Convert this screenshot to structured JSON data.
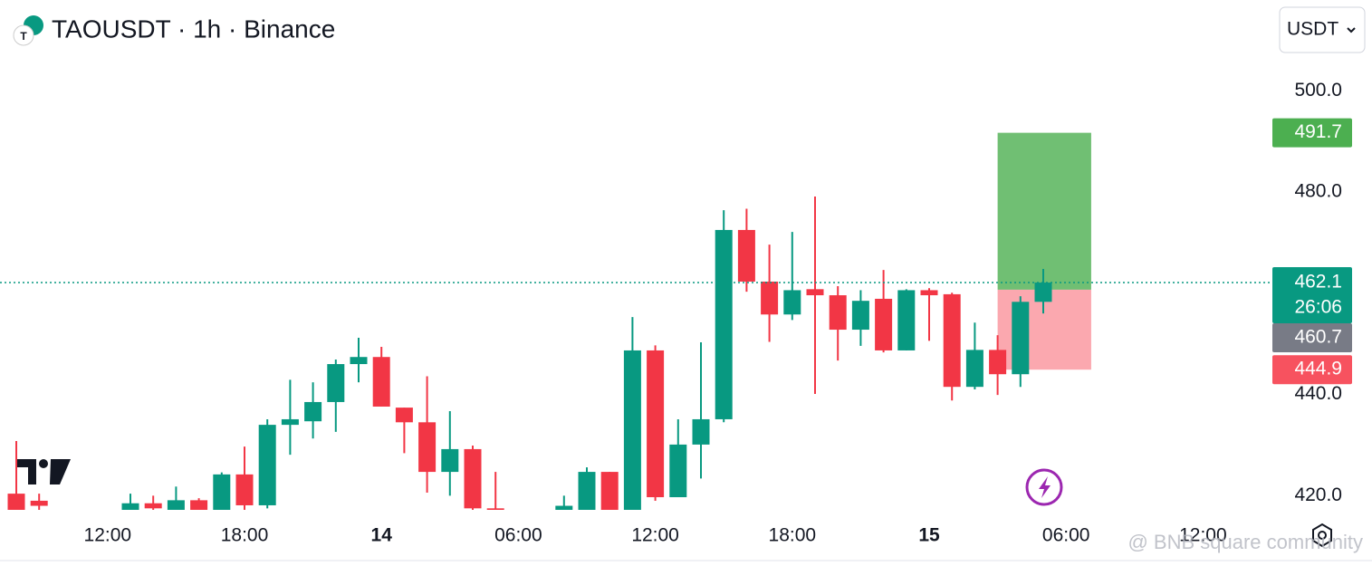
{
  "chart_data": {
    "type": "candlestick",
    "title": "TAOUSDT · 1h · Binance",
    "currency": "USDT",
    "categories": [
      null,
      null,
      null,
      null,
      "12:00",
      null,
      null,
      null,
      null,
      null,
      "18:00",
      null,
      null,
      null,
      null,
      null,
      "14",
      null,
      null,
      null,
      null,
      null,
      "06:00",
      null,
      null,
      null,
      null,
      null,
      "12:00",
      null,
      null,
      null,
      null,
      null,
      "18:00",
      null,
      null,
      null,
      null,
      null,
      "15",
      null,
      null,
      null,
      null,
      null,
      "06:00",
      null,
      null,
      null,
      null,
      null,
      "12:00",
      null,
      null,
      null
    ],
    "open": [
      420.4,
      419,
      null,
      null,
      null,
      417,
      418.5,
      417,
      419.1,
      417,
      424.2,
      418.1,
      434.0,
      434.7,
      438.5,
      446.0,
      447.4,
      437.4,
      434.5,
      424.7,
      429.2,
      417.5,
      null,
      null,
      417,
      417,
      424.7,
      417,
      448.7,
      419.7,
      430.1,
      435.1,
      472.5,
      462.3,
      455.8,
      460.8,
      459.6,
      452.8,
      458.9,
      448.7,
      460.6,
      459.8,
      441.5,
      448.8,
      444.0,
      458.3,
      null,
      null,
      null,
      null,
      null,
      null,
      null,
      null,
      null,
      null
    ],
    "high": [
      430.8,
      420.4,
      null,
      null,
      null,
      420.4,
      420,
      421.8,
      419.5,
      424.6,
      429.7,
      435.1,
      442.9,
      442.4,
      446.9,
      451.2,
      449.4,
      437.4,
      443.6,
      436.7,
      429.9,
      424.7,
      null,
      null,
      420,
      425.6,
      424.7,
      455.3,
      449.7,
      435.1,
      450.3,
      476.4,
      476.7,
      469.6,
      472.1,
      479.1,
      461.4,
      460.6,
      464.6,
      460.8,
      461.0,
      460.1,
      454.2,
      451.7,
      459.4,
      464.8,
      null,
      null,
      null,
      null,
      null,
      null,
      null,
      null,
      null,
      null
    ],
    "low": [
      415,
      416,
      null,
      null,
      null,
      416,
      416,
      416,
      416,
      416,
      417.2,
      417.5,
      428.1,
      431.3,
      432.6,
      442.4,
      437.6,
      428.4,
      420.6,
      420.0,
      417,
      416,
      null,
      null,
      416,
      416,
      416,
      416,
      419.0,
      419.7,
      423.4,
      434.5,
      460.3,
      450.4,
      454.7,
      440.1,
      446.7,
      449.6,
      448.3,
      448.7,
      450.6,
      438.8,
      441.0,
      439.9,
      441.5,
      456.0,
      null,
      null,
      null,
      null,
      null,
      null,
      null,
      null,
      null,
      null
    ],
    "close": [
      417,
      418,
      null,
      null,
      null,
      418.5,
      417.5,
      419.1,
      417,
      424.2,
      418.1,
      434.0,
      435.1,
      438.5,
      446.0,
      447.4,
      437.6,
      434.5,
      424.7,
      429.2,
      417.5,
      417.2,
      null,
      null,
      418,
      424.7,
      417,
      448.7,
      419.7,
      430.1,
      435.1,
      472.5,
      462.3,
      455.8,
      460.6,
      459.6,
      452.8,
      458.5,
      448.7,
      460.6,
      459.6,
      441.5,
      448.8,
      444.0,
      458.3,
      462.1,
      null,
      null,
      null,
      null,
      null,
      null,
      null,
      null,
      null,
      null
    ],
    "up_color": "#089981",
    "down_color": "#f23645",
    "ylim": [
      417.2,
      507.2
    ],
    "yticks": [
      {
        "value": 420,
        "label": "420.0"
      },
      {
        "value": 440,
        "label": "440.0"
      },
      {
        "value": 480,
        "label": "480.0"
      },
      {
        "value": 500,
        "label": "500.0"
      }
    ],
    "last_price": 462.1,
    "countdown": "26:06",
    "position": {
      "target": 491.7,
      "entry": 460.7,
      "stop": 444.9
    },
    "watermark": "@ BNB square community"
  }
}
